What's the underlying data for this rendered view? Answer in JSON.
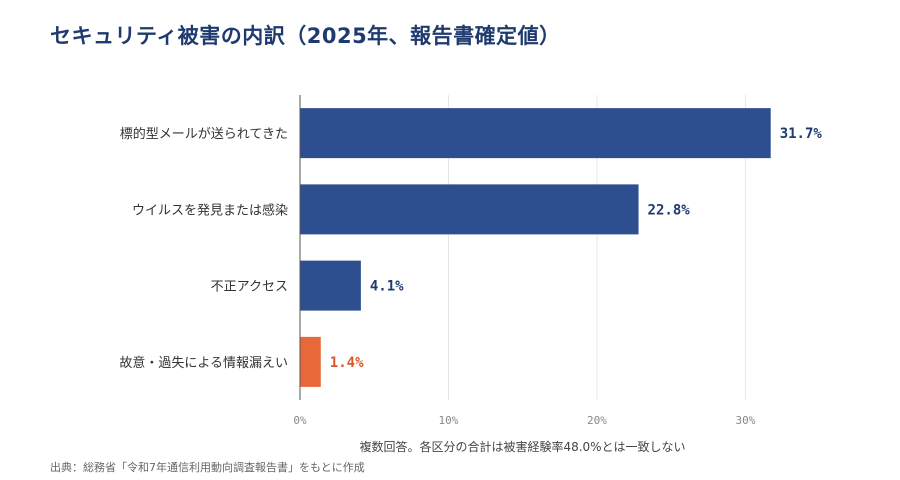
{
  "title": "セキュリティ被害の内訳（2025年、報告書確定値）",
  "source": "出典：総務省「令和7年通信利用動向調査報告書」をもとに作成",
  "chart_data": {
    "type": "bar",
    "orientation": "horizontal",
    "categories": [
      "標的型メールが送られてきた",
      "ウイルスを発見または感染",
      "不正アクセス",
      "故意・過失による情報漏えい"
    ],
    "values": [
      31.7,
      22.8,
      4.1,
      1.4
    ],
    "value_labels": [
      "31.7%",
      "22.8%",
      "4.1%",
      "1.4%"
    ],
    "colors": [
      "#2e4f8f",
      "#2e4f8f",
      "#2e4f8f",
      "#e8683a"
    ],
    "label_colors": [
      "#1f3a6e",
      "#1f3a6e",
      "#1f3a6e",
      "#d45a2c"
    ],
    "xlabel": "複数回答。各区分の合計は被害経験率48.0%とは一致しない",
    "xlim": [
      0,
      33
    ],
    "xticks": [
      0,
      10,
      20,
      30
    ],
    "xtick_labels": [
      "0%",
      "10%",
      "20%",
      "30%"
    ],
    "grid": true
  }
}
